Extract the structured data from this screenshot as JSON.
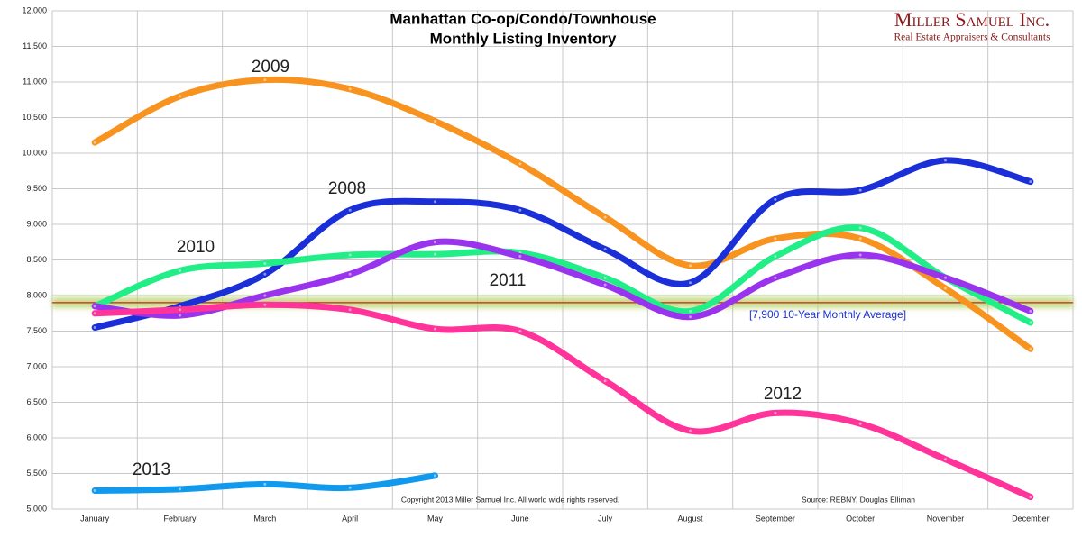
{
  "chart_data": {
    "type": "line",
    "title": "Manhattan Co-op/Condo/Townhouse",
    "subtitle": "Monthly Listing Inventory",
    "brand": "Miller Samuel Inc.",
    "brand_tagline": "Real Estate Appraisers & Consultants",
    "copyright": "Copyright 2013 Miller Samuel Inc.  All world wide rights reserved.",
    "source": "Source: REBNY, Douglas Elliman",
    "categories": [
      "January",
      "February",
      "March",
      "April",
      "May",
      "June",
      "July",
      "August",
      "September",
      "October",
      "November",
      "December"
    ],
    "series": [
      {
        "name": "2008",
        "color": "#1a2fd8",
        "values": [
          7550,
          7850,
          8300,
          9200,
          9320,
          9200,
          8650,
          8180,
          9350,
          9480,
          9900,
          9600
        ]
      },
      {
        "name": "2009",
        "color": "#f7931e",
        "values": [
          10150,
          10800,
          11030,
          10900,
          10450,
          9850,
          9100,
          8420,
          8800,
          8800,
          8100,
          7250
        ]
      },
      {
        "name": "2010",
        "color": "#22ee88",
        "values": [
          7850,
          8350,
          8450,
          8570,
          8580,
          8600,
          8250,
          7780,
          8550,
          8950,
          8250,
          7620
        ]
      },
      {
        "name": "2011",
        "color": "#9933ee",
        "values": [
          7850,
          7720,
          8000,
          8300,
          8750,
          8550,
          8150,
          7700,
          8250,
          8570,
          8250,
          7780
        ]
      },
      {
        "name": "2012",
        "color": "#ff3399",
        "values": [
          7750,
          7800,
          7870,
          7800,
          7530,
          7500,
          6800,
          6100,
          6350,
          6200,
          5700,
          5170
        ]
      },
      {
        "name": "2013",
        "color": "#1199ee",
        "values": [
          5260,
          5280,
          5350,
          5300,
          5470,
          null,
          null,
          null,
          null,
          null,
          null,
          null
        ]
      }
    ],
    "reference_line": {
      "value": 7900,
      "label": "[7,900 10-Year Monthly Average]",
      "color": "#cc2222"
    },
    "ylim": [
      5000,
      12000
    ],
    "yticks": [
      {
        "value": 5000,
        "label": "5,000"
      },
      {
        "value": 5500,
        "label": "5,500"
      },
      {
        "value": 6000,
        "label": "6,000"
      },
      {
        "value": 6500,
        "label": "6,500"
      },
      {
        "value": 7000,
        "label": "7,000"
      },
      {
        "value": 7500,
        "label": "7,500"
      },
      {
        "value": 8000,
        "label": "8,000"
      },
      {
        "value": 8500,
        "label": "8,500"
      },
      {
        "value": 9000,
        "label": "9,000"
      },
      {
        "value": 9500,
        "label": "9,500"
      },
      {
        "value": 10000,
        "label": "10,000"
      },
      {
        "value": 10500,
        "label": "10,500"
      },
      {
        "value": 11000,
        "label": "11,000"
      },
      {
        "value": 11500,
        "label": "11,500"
      },
      {
        "value": 12000,
        "label": "12,000"
      }
    ],
    "grid": true
  }
}
